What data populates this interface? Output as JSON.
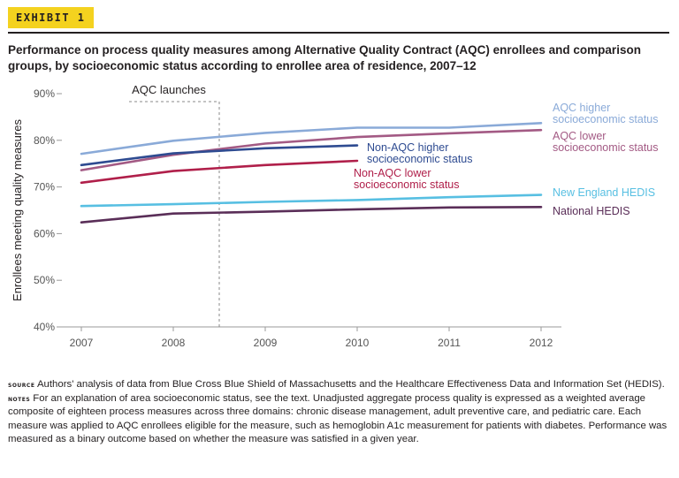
{
  "exhibit_label": "EXHIBIT 1",
  "title": "Performance on process quality measures among Alternative Quality Contract (AQC) enrollees and comparison groups, by socioeconomic status according to enrollee area of residence, 2007–12",
  "chart_data": {
    "type": "line",
    "x": [
      2007,
      2008,
      2009,
      2010,
      2011,
      2012
    ],
    "xlabel": "",
    "ylabel": "Enrollees meeting quality measures",
    "ylim": [
      40,
      90
    ],
    "yticks": [
      40,
      50,
      60,
      70,
      80,
      90
    ],
    "ytick_labels": [
      "40%",
      "50%",
      "60%",
      "70%",
      "80%",
      "90%"
    ],
    "annotation": {
      "text": "AQC launches",
      "x": 2008.5
    },
    "series": [
      {
        "key": "aqc-higher",
        "name": "AQC higher socioeconomic status",
        "label_lines": [
          "AQC higher",
          "socioeconomic status"
        ],
        "color": "#8aaad8",
        "x": [
          2007,
          2008,
          2009,
          2010,
          2011,
          2012
        ],
        "values": [
          77.1,
          79.9,
          81.6,
          82.7,
          82.7,
          83.7
        ]
      },
      {
        "key": "aqc-lower",
        "name": "AQC lower socioeconomic status",
        "label_lines": [
          "AQC lower",
          "socioeconomic status"
        ],
        "color": "#a35a84",
        "x": [
          2007,
          2008,
          2009,
          2010,
          2011,
          2012
        ],
        "values": [
          73.6,
          76.9,
          79.3,
          80.7,
          81.5,
          82.2
        ]
      },
      {
        "key": "non-aqc-higher",
        "name": "Non-AQC higher socioeconomic status",
        "label_lines": [
          "Non-AQC higher",
          "socioeconomic status"
        ],
        "color": "#2e4b91",
        "x": [
          2007,
          2008,
          2009,
          2010
        ],
        "values": [
          74.7,
          77.2,
          78.3,
          78.9
        ]
      },
      {
        "key": "non-aqc-lower",
        "name": "Non-AQC lower socioeconomic status",
        "label_lines": [
          "Non-AQC lower",
          "socioeconomic status"
        ],
        "color": "#b01f4a",
        "x": [
          2007,
          2008,
          2009,
          2010
        ],
        "values": [
          70.9,
          73.4,
          74.7,
          75.6
        ]
      },
      {
        "key": "new-england-hedis",
        "name": "New England HEDIS",
        "label_lines": [
          "New England HEDIS"
        ],
        "color": "#57bfe2",
        "x": [
          2007,
          2008,
          2009,
          2010,
          2011,
          2012
        ],
        "values": [
          65.9,
          66.3,
          66.8,
          67.2,
          67.8,
          68.3
        ]
      },
      {
        "key": "national-hedis",
        "name": "National HEDIS",
        "label_lines": [
          "National HEDIS"
        ],
        "color": "#5a2e58",
        "x": [
          2007,
          2008,
          2009,
          2010,
          2011,
          2012
        ],
        "values": [
          62.4,
          64.3,
          64.7,
          65.2,
          65.6,
          65.7
        ]
      }
    ]
  },
  "footnote": {
    "source_label": "Source",
    "source_text": " Authors' analysis of data from Blue Cross Blue Shield of Massachusetts and the Healthcare Effectiveness Data and Information Set (HEDIS). ",
    "notes_label": "Notes",
    "notes_text": " For an explanation of area socioeconomic status, see the text. Unadjusted aggregate process quality is expressed as a weighted average composite of eighteen process measures across three domains: chronic disease management, adult preventive care, and pediatric care. Each measure was applied to AQC enrollees eligible for the measure, such as hemoglobin A1c measurement for patients with diabetes. Performance was measured as a binary outcome based on whether the measure was satisfied in a given year."
  }
}
